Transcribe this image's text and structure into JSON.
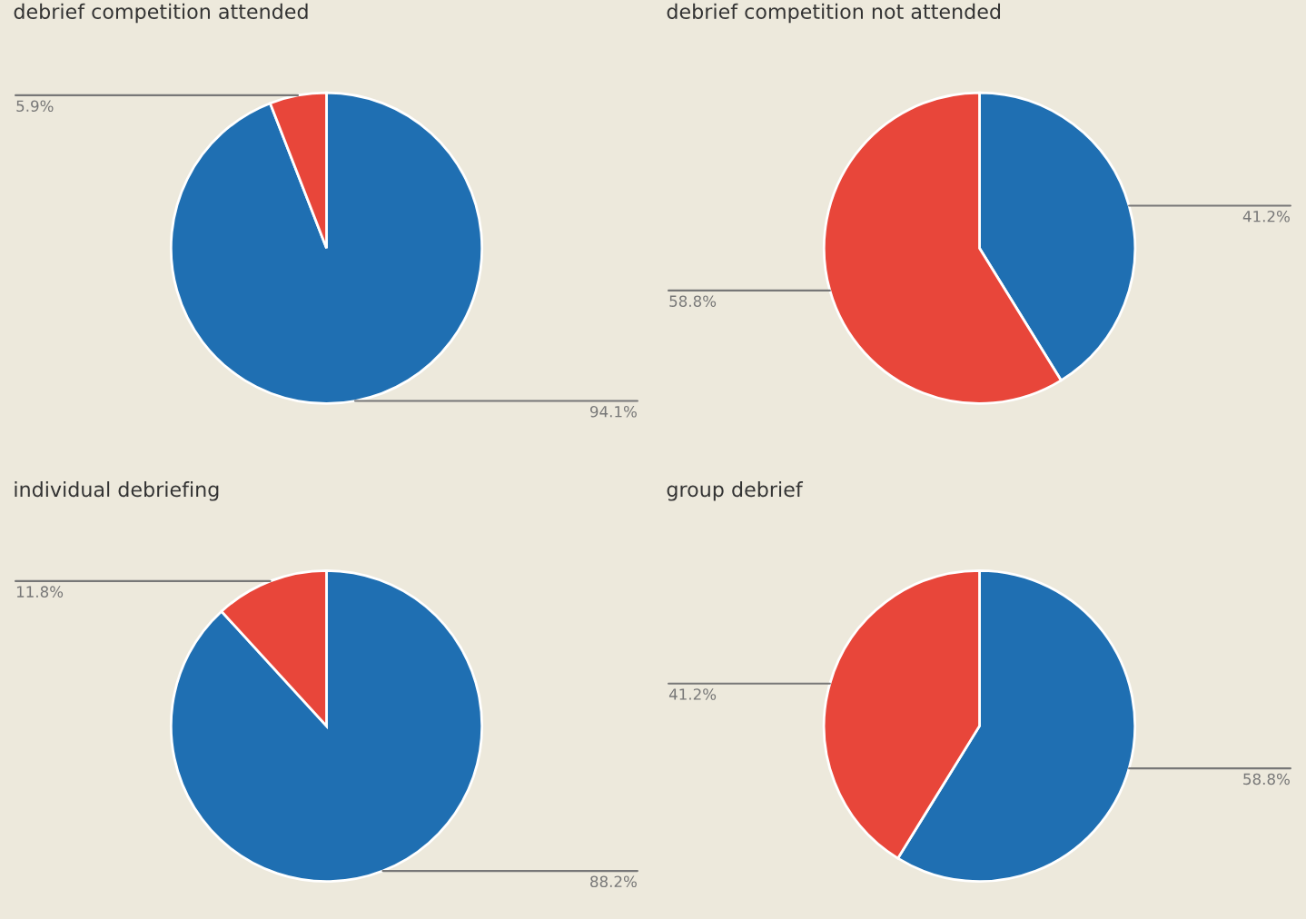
{
  "chart_data": [
    {
      "type": "pie",
      "title": "debrief competition attended",
      "categories": [
        null,
        null
      ],
      "values": [
        94.1,
        5.9
      ],
      "colors": [
        "#1f6fb2",
        "#e8463a"
      ],
      "value_labels": [
        "94.1%",
        "5.9%"
      ]
    },
    {
      "type": "pie",
      "title": "debrief competition not attended",
      "categories": [
        null,
        null
      ],
      "values": [
        41.2,
        58.8
      ],
      "colors": [
        "#1f6fb2",
        "#e8463a"
      ],
      "value_labels": [
        "41.2%",
        "58.8%"
      ]
    },
    {
      "type": "pie",
      "title": "individual debriefing",
      "categories": [
        null,
        null
      ],
      "values": [
        88.2,
        11.8
      ],
      "colors": [
        "#1f6fb2",
        "#e8463a"
      ],
      "value_labels": [
        "88.2%",
        "11.8%"
      ]
    },
    {
      "type": "pie",
      "title": "group debrief",
      "categories": [
        null,
        null
      ],
      "values": [
        58.8,
        41.2
      ],
      "colors": [
        "#1f6fb2",
        "#e8463a"
      ],
      "value_labels": [
        "58.8%",
        "41.2%"
      ]
    }
  ]
}
